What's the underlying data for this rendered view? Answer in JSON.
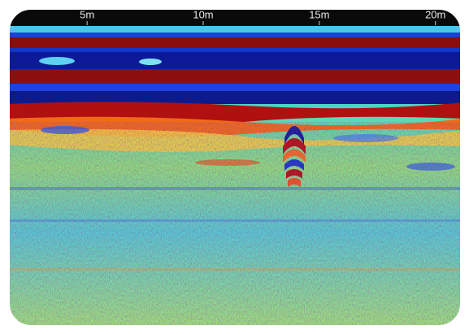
{
  "chart_data": {
    "type": "radargram",
    "xlim": [
      1.6,
      21.2
    ],
    "xticks": [
      {
        "value": 5,
        "label": "5m"
      },
      {
        "value": 10,
        "label": "10m"
      },
      {
        "value": 15,
        "label": "15m"
      },
      {
        "value": 20,
        "label": "20m"
      }
    ]
  }
}
